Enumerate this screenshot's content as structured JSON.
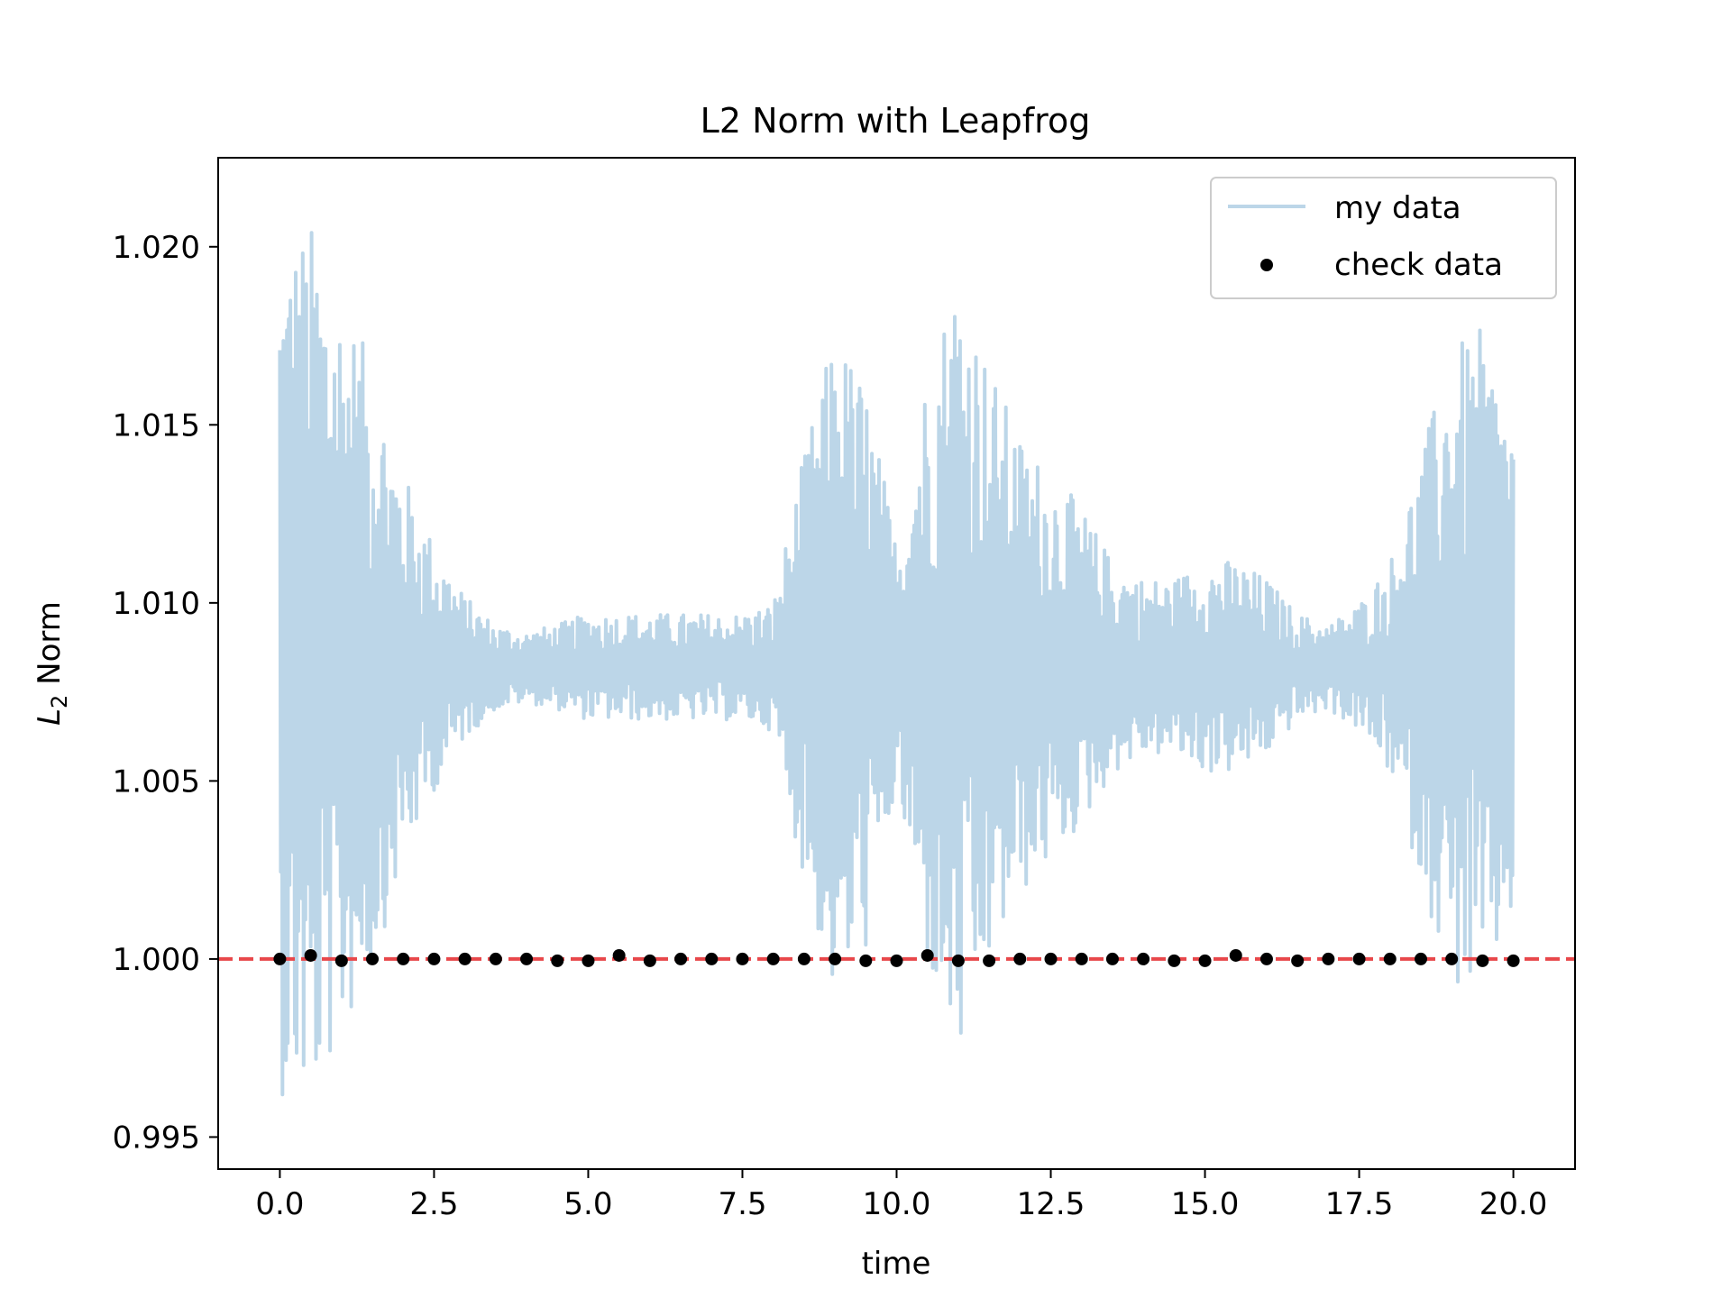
{
  "chart_data": {
    "type": "line",
    "title": "L2 Norm with Leapfrog",
    "xlabel": "time",
    "ylabel_main": "L",
    "ylabel_sub": "2",
    "ylabel_rest": " Norm",
    "xlim": [
      -1.0,
      21.0
    ],
    "ylim": [
      0.9941,
      1.0225
    ],
    "x_ticks": [
      0.0,
      2.5,
      5.0,
      7.5,
      10.0,
      12.5,
      15.0,
      17.5,
      20.0
    ],
    "x_tick_labels": [
      "0.0",
      "2.5",
      "5.0",
      "7.5",
      "10.0",
      "12.5",
      "15.0",
      "17.5",
      "20.0"
    ],
    "y_ticks": [
      0.995,
      1.0,
      1.005,
      1.01,
      1.015,
      1.02
    ],
    "y_tick_labels": [
      "0.995",
      "1.000",
      "1.005",
      "1.010",
      "1.015",
      "1.020"
    ],
    "reference_line": {
      "y": 1.0,
      "color": "#e8474a",
      "style": "dashed"
    },
    "legend": {
      "placement": "top-right",
      "entries": [
        "my data",
        "check data"
      ]
    },
    "series": [
      {
        "name": "my data",
        "kind": "line",
        "color": "#bcd6e8",
        "x": [
          0.0,
          0.5,
          1.0,
          1.5,
          2.0,
          2.5,
          3.0,
          3.5,
          4.0,
          4.5,
          5.0,
          5.5,
          6.0,
          6.5,
          7.0,
          7.5,
          8.0,
          8.5,
          9.0,
          9.5,
          10.0,
          10.5,
          11.0,
          11.5,
          12.0,
          12.5,
          13.0,
          13.5,
          14.0,
          14.5,
          15.0,
          15.5,
          16.0,
          16.5,
          17.0,
          17.5,
          18.0,
          18.5,
          19.0,
          19.5,
          20.0
        ],
        "center": [
          1.0082,
          1.0082,
          1.0082,
          1.0082,
          1.0082,
          1.0082,
          1.0082,
          1.0082,
          1.0082,
          1.0082,
          1.0082,
          1.0082,
          1.0082,
          1.0082,
          1.0082,
          1.0082,
          1.0082,
          1.0082,
          1.0082,
          1.0082,
          1.0082,
          1.0082,
          1.0082,
          1.0082,
          1.0082,
          1.0082,
          1.0082,
          1.0082,
          1.0082,
          1.0082,
          1.0082,
          1.0082,
          1.0082,
          1.0082,
          1.0082,
          1.0082,
          1.0082,
          1.0082,
          1.0082,
          1.0082,
          1.0082
        ],
        "amplitude": [
          0.012,
          0.0125,
          0.0105,
          0.0085,
          0.0055,
          0.0035,
          0.002,
          0.0012,
          0.001,
          0.0012,
          0.0015,
          0.0015,
          0.0015,
          0.0015,
          0.0015,
          0.0015,
          0.0018,
          0.006,
          0.0095,
          0.008,
          0.0035,
          0.0085,
          0.0115,
          0.0085,
          0.0065,
          0.0055,
          0.0045,
          0.003,
          0.0025,
          0.0025,
          0.003,
          0.003,
          0.0025,
          0.0015,
          0.0012,
          0.0018,
          0.003,
          0.006,
          0.009,
          0.0095,
          0.007
        ]
      },
      {
        "name": "check data",
        "kind": "scatter",
        "color": "#000000",
        "x": [
          0.0,
          0.5,
          1.0,
          1.5,
          2.0,
          2.5,
          3.0,
          3.5,
          4.0,
          4.5,
          5.0,
          5.5,
          6.0,
          6.5,
          7.0,
          7.5,
          8.0,
          8.5,
          9.0,
          9.5,
          10.0,
          10.5,
          11.0,
          11.5,
          12.0,
          12.5,
          13.0,
          13.5,
          14.0,
          14.5,
          15.0,
          15.5,
          16.0,
          16.5,
          17.0,
          17.5,
          18.0,
          18.5,
          19.0,
          19.5,
          20.0
        ],
        "y": [
          1.0,
          1.0001,
          0.99995,
          1.0,
          1.0,
          1.0,
          1.0,
          1.0,
          1.0,
          0.99995,
          0.99995,
          1.0001,
          0.99995,
          1.0,
          1.0,
          1.0,
          1.0,
          1.0,
          1.0,
          0.99995,
          0.99995,
          1.0001,
          0.99995,
          0.99995,
          1.0,
          1.0,
          1.0,
          1.0,
          1.0,
          0.99995,
          0.99995,
          1.0001,
          1.0,
          0.99995,
          1.0,
          1.0,
          1.0,
          1.0,
          1.0,
          0.99995,
          0.99995
        ]
      }
    ]
  }
}
